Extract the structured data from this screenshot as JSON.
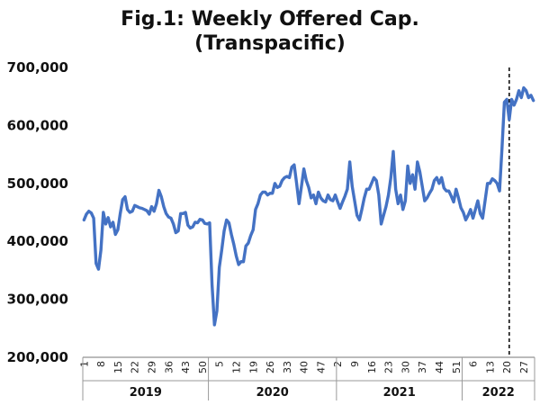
{
  "chart_data": {
    "type": "line",
    "title_line1": "Fig.1: Weekly Offered Cap.",
    "title_line2": "(Transpacific)",
    "xlabel": "",
    "ylabel": "",
    "ylim": [
      200000,
      700000
    ],
    "yticks": [
      {
        "value": 200000,
        "label": "200,000"
      },
      {
        "value": 300000,
        "label": "300,000"
      },
      {
        "value": 400000,
        "label": "400,000"
      },
      {
        "value": 500000,
        "label": "500,000"
      },
      {
        "value": 600000,
        "label": "600,000"
      },
      {
        "value": 700000,
        "label": "700,000"
      }
    ],
    "week_ticks": [
      "1",
      "8",
      "15",
      "22",
      "29",
      "36",
      "43",
      "50",
      "5",
      "12",
      "19",
      "26",
      "33",
      "40",
      "47",
      "2",
      "9",
      "16",
      "23",
      "30",
      "37",
      "44",
      "51",
      "6",
      "13",
      "20",
      "27"
    ],
    "years": [
      {
        "label": "2019",
        "weeks": 52
      },
      {
        "label": "2020",
        "weeks": 53
      },
      {
        "label": "2021",
        "weeks": 52
      },
      {
        "label": "2022",
        "weeks": 30
      }
    ],
    "vline_week_label": "20",
    "vline_year": "2022",
    "grid": false,
    "legend": "none",
    "line_color": "#4472C4",
    "series": [
      {
        "values": [
          437000,
          447000,
          452000,
          449000,
          440000,
          362000,
          352000,
          385000,
          450000,
          430000,
          441000,
          425000,
          433000,
          412000,
          420000,
          448000,
          472000,
          477000,
          455000,
          450000,
          452000,
          462000,
          460000,
          458000,
          457000,
          455000,
          453000,
          447000,
          460000,
          452000,
          465000,
          488000,
          477000,
          460000,
          448000,
          442000,
          440000,
          430000,
          415000,
          418000,
          448000,
          448000,
          450000,
          428000,
          423000,
          425000,
          433000,
          432000,
          438000,
          437000,
          431000,
          430000,
          432000,
          325000,
          256000,
          280000,
          355000,
          385000,
          418000,
          437000,
          432000,
          412000,
          395000,
          375000,
          360000,
          365000,
          365000,
          392000,
          397000,
          410000,
          420000,
          455000,
          465000,
          480000,
          485000,
          485000,
          480000,
          483000,
          483000,
          500000,
          493000,
          495000,
          505000,
          510000,
          512000,
          510000,
          528000,
          532000,
          500000,
          465000,
          495000,
          525000,
          505000,
          493000,
          475000,
          480000,
          465000,
          485000,
          475000,
          470000,
          468000,
          480000,
          472000,
          470000,
          480000,
          468000,
          457000,
          468000,
          478000,
          490000,
          537000,
          495000,
          470000,
          445000,
          437000,
          455000,
          475000,
          490000,
          490000,
          500000,
          510000,
          505000,
          480000,
          430000,
          445000,
          460000,
          480000,
          510000,
          555000,
          490000,
          465000,
          480000,
          455000,
          470000,
          530000,
          500000,
          515000,
          490000,
          537000,
          520000,
          495000,
          470000,
          475000,
          483000,
          490000,
          505000,
          510000,
          500000,
          510000,
          492000,
          487000,
          487000,
          478000,
          468000,
          490000,
          475000,
          458000,
          450000,
          437000,
          445000,
          455000,
          440000,
          455000,
          470000,
          448000,
          440000,
          470000,
          500000,
          500000,
          508000,
          505000,
          500000,
          487000,
          560000,
          640000,
          645000,
          610000,
          645000,
          635000,
          645000,
          660000,
          648000,
          665000,
          660000,
          648000,
          652000,
          643000
        ]
      }
    ]
  }
}
